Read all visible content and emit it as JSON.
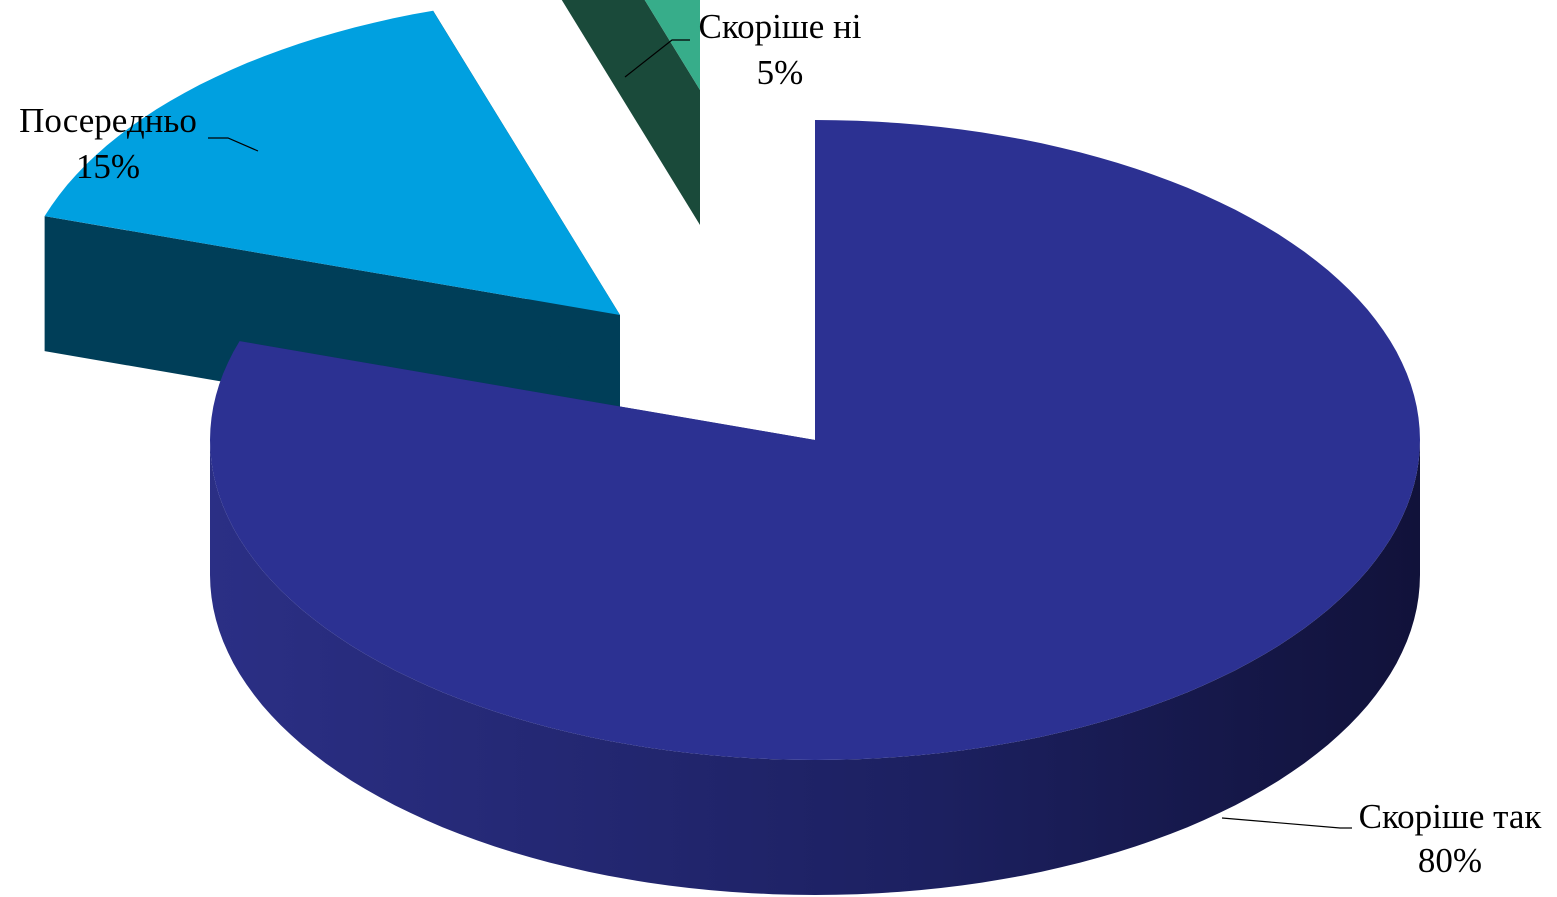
{
  "chart_data": {
    "type": "pie",
    "style": "3d-exploded",
    "slices": [
      {
        "label": "Скоріше так",
        "value": 80,
        "display": "80%",
        "color": "#2c3192",
        "side_color": "#1f2366"
      },
      {
        "label": "Посередньо",
        "value": 15,
        "display": "15%",
        "color": "#00a0e0",
        "side_color": "#003e58"
      },
      {
        "label": "Скоріше ні",
        "value": 5,
        "display": "5%",
        "color": "#37ad8a",
        "side_color": "#1a4a3a"
      }
    ],
    "legend": "none",
    "data_labels": "outside-with-leader-lines"
  }
}
